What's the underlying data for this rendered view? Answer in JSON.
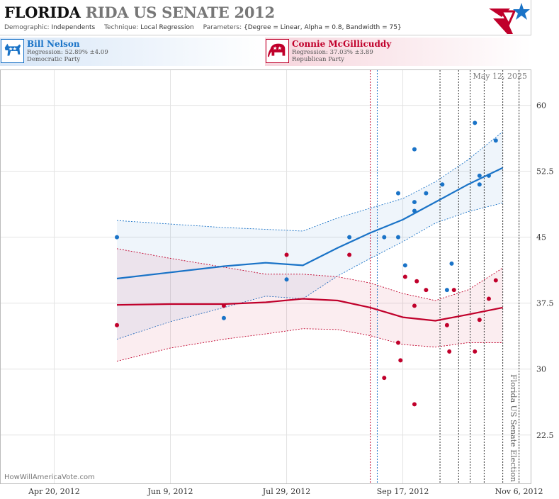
{
  "header": {
    "title_state": "FLORIDA",
    "title_rest": "RIDA US SENATE 2012",
    "demographic_label": "Demographic:",
    "demographic_value": "Independents",
    "technique_label": "Technique:",
    "technique_value": "Local Regression",
    "parameters_label": "Parameters:",
    "parameters_value": "{Degree = Linear, Alpha = 0.8, Bandwidth = 75}"
  },
  "candidates": {
    "dem": {
      "name": "Bill Nelson",
      "regression": "Regression: 52.89% ±4.09",
      "party": "Democratic Party",
      "icon": "donkey-icon"
    },
    "rep": {
      "name": "Connie McGillicuddy",
      "regression": "Regression: 37.03% ±3.89",
      "party": "Republican Party",
      "icon": "elephant-icon"
    }
  },
  "footer": {
    "credit": "HowWillAmericaVote.com",
    "date_stamp": "May 12, 2025",
    "election_label": "Florida US Senate Election"
  },
  "colors": {
    "dem": "#1a73c7",
    "rep": "#c0002b",
    "grid": "#e3e3e3"
  },
  "chart_data": {
    "type": "scatter",
    "x_type": "date",
    "xlim": [
      "2012-03-28",
      "2012-11-11"
    ],
    "ylim": [
      17,
      64
    ],
    "x_ticks": [
      {
        "date": "2012-04-20",
        "label": "Apr 20, 2012"
      },
      {
        "date": "2012-06-09",
        "label": "Jun 9, 2012"
      },
      {
        "date": "2012-07-29",
        "label": "Jul 29, 2012"
      },
      {
        "date": "2012-09-17",
        "label": "Sep 17, 2012"
      },
      {
        "date": "2012-11-06",
        "label": "Nov 6, 2012"
      }
    ],
    "y_ticks": [
      {
        "value": 22.5,
        "label": "22.5"
      },
      {
        "value": 30,
        "label": "30"
      },
      {
        "value": 37.5,
        "label": "37.5"
      },
      {
        "value": 45,
        "label": "45"
      },
      {
        "value": 52.5,
        "label": "52.5"
      },
      {
        "value": 60,
        "label": "60"
      }
    ],
    "grid": true,
    "event_lines": [
      {
        "date": "2012-09-03",
        "style": "rep"
      },
      {
        "date": "2012-09-06",
        "style": "dem"
      },
      {
        "date": "2012-10-03",
        "style": "black"
      },
      {
        "date": "2012-10-11",
        "style": "black"
      },
      {
        "date": "2012-10-16",
        "style": "black"
      },
      {
        "date": "2012-10-22",
        "style": "black"
      },
      {
        "date": "2012-10-30",
        "style": "black"
      },
      {
        "date": "2012-11-06",
        "style": "black"
      }
    ],
    "series": [
      {
        "name": "Bill Nelson",
        "color": "#1a73c7",
        "points": [
          {
            "x": "2012-05-17",
            "y": 45
          },
          {
            "x": "2012-07-02",
            "y": 35.8
          },
          {
            "x": "2012-07-29",
            "y": 40.2
          },
          {
            "x": "2012-08-25",
            "y": 45
          },
          {
            "x": "2012-09-09",
            "y": 45
          },
          {
            "x": "2012-09-15",
            "y": 50
          },
          {
            "x": "2012-09-15",
            "y": 45
          },
          {
            "x": "2012-09-18",
            "y": 41.8
          },
          {
            "x": "2012-09-22",
            "y": 55
          },
          {
            "x": "2012-09-22",
            "y": 49
          },
          {
            "x": "2012-09-22",
            "y": 48
          },
          {
            "x": "2012-09-27",
            "y": 50
          },
          {
            "x": "2012-10-04",
            "y": 51
          },
          {
            "x": "2012-10-06",
            "y": 39
          },
          {
            "x": "2012-10-08",
            "y": 42
          },
          {
            "x": "2012-10-18",
            "y": 58
          },
          {
            "x": "2012-10-20",
            "y": 51
          },
          {
            "x": "2012-10-20",
            "y": 52
          },
          {
            "x": "2012-10-24",
            "y": 52
          },
          {
            "x": "2012-10-27",
            "y": 56
          }
        ],
        "fit": [
          {
            "x": "2012-05-17",
            "y": 40.3
          },
          {
            "x": "2012-06-09",
            "y": 41.0
          },
          {
            "x": "2012-07-02",
            "y": 41.7
          },
          {
            "x": "2012-07-20",
            "y": 42.1
          },
          {
            "x": "2012-08-05",
            "y": 41.8
          },
          {
            "x": "2012-08-20",
            "y": 43.8
          },
          {
            "x": "2012-09-03",
            "y": 45.5
          },
          {
            "x": "2012-09-17",
            "y": 47.0
          },
          {
            "x": "2012-10-01",
            "y": 49.0
          },
          {
            "x": "2012-10-15",
            "y": 51.0
          },
          {
            "x": "2012-10-30",
            "y": 52.9
          }
        ],
        "fit_lower": [
          {
            "x": "2012-05-17",
            "y": 33.4
          },
          {
            "x": "2012-06-09",
            "y": 35.4
          },
          {
            "x": "2012-07-02",
            "y": 37.0
          },
          {
            "x": "2012-07-20",
            "y": 38.3
          },
          {
            "x": "2012-08-05",
            "y": 38.0
          },
          {
            "x": "2012-08-20",
            "y": 40.6
          },
          {
            "x": "2012-09-03",
            "y": 42.6
          },
          {
            "x": "2012-09-17",
            "y": 44.5
          },
          {
            "x": "2012-10-01",
            "y": 46.6
          },
          {
            "x": "2012-10-15",
            "y": 47.9
          },
          {
            "x": "2012-10-30",
            "y": 48.9
          }
        ],
        "fit_upper": [
          {
            "x": "2012-05-17",
            "y": 46.9
          },
          {
            "x": "2012-06-09",
            "y": 46.5
          },
          {
            "x": "2012-07-02",
            "y": 46.1
          },
          {
            "x": "2012-07-20",
            "y": 45.9
          },
          {
            "x": "2012-08-05",
            "y": 45.7
          },
          {
            "x": "2012-08-20",
            "y": 47.2
          },
          {
            "x": "2012-09-03",
            "y": 48.3
          },
          {
            "x": "2012-09-17",
            "y": 49.4
          },
          {
            "x": "2012-10-01",
            "y": 51.3
          },
          {
            "x": "2012-10-15",
            "y": 53.8
          },
          {
            "x": "2012-10-30",
            "y": 57.0
          }
        ]
      },
      {
        "name": "Connie McGillicuddy",
        "color": "#c0002b",
        "points": [
          {
            "x": "2012-05-17",
            "y": 35
          },
          {
            "x": "2012-07-02",
            "y": 37.2
          },
          {
            "x": "2012-07-29",
            "y": 43
          },
          {
            "x": "2012-08-25",
            "y": 43
          },
          {
            "x": "2012-09-09",
            "y": 29
          },
          {
            "x": "2012-09-15",
            "y": 33
          },
          {
            "x": "2012-09-16",
            "y": 31
          },
          {
            "x": "2012-09-18",
            "y": 40.5
          },
          {
            "x": "2012-09-22",
            "y": 37.2
          },
          {
            "x": "2012-09-22",
            "y": 26
          },
          {
            "x": "2012-09-23",
            "y": 40
          },
          {
            "x": "2012-09-27",
            "y": 39
          },
          {
            "x": "2012-10-06",
            "y": 35
          },
          {
            "x": "2012-10-07",
            "y": 32
          },
          {
            "x": "2012-10-09",
            "y": 39
          },
          {
            "x": "2012-10-18",
            "y": 32
          },
          {
            "x": "2012-10-20",
            "y": 35.6
          },
          {
            "x": "2012-10-24",
            "y": 38
          },
          {
            "x": "2012-10-27",
            "y": 40.1
          }
        ],
        "fit": [
          {
            "x": "2012-05-17",
            "y": 37.3
          },
          {
            "x": "2012-06-09",
            "y": 37.4
          },
          {
            "x": "2012-07-02",
            "y": 37.4
          },
          {
            "x": "2012-07-20",
            "y": 37.6
          },
          {
            "x": "2012-08-05",
            "y": 38.0
          },
          {
            "x": "2012-08-20",
            "y": 37.8
          },
          {
            "x": "2012-09-03",
            "y": 37.0
          },
          {
            "x": "2012-09-17",
            "y": 35.9
          },
          {
            "x": "2012-10-01",
            "y": 35.5
          },
          {
            "x": "2012-10-15",
            "y": 36.2
          },
          {
            "x": "2012-10-30",
            "y": 37.0
          }
        ],
        "fit_lower": [
          {
            "x": "2012-05-17",
            "y": 30.9
          },
          {
            "x": "2012-06-09",
            "y": 32.4
          },
          {
            "x": "2012-07-02",
            "y": 33.4
          },
          {
            "x": "2012-07-20",
            "y": 34.0
          },
          {
            "x": "2012-08-05",
            "y": 34.6
          },
          {
            "x": "2012-08-20",
            "y": 34.5
          },
          {
            "x": "2012-09-03",
            "y": 33.8
          },
          {
            "x": "2012-09-17",
            "y": 32.8
          },
          {
            "x": "2012-10-01",
            "y": 32.5
          },
          {
            "x": "2012-10-15",
            "y": 33.0
          },
          {
            "x": "2012-10-30",
            "y": 33.0
          }
        ],
        "fit_upper": [
          {
            "x": "2012-05-17",
            "y": 43.7
          },
          {
            "x": "2012-06-09",
            "y": 42.6
          },
          {
            "x": "2012-07-02",
            "y": 41.6
          },
          {
            "x": "2012-07-20",
            "y": 40.8
          },
          {
            "x": "2012-08-05",
            "y": 40.8
          },
          {
            "x": "2012-08-20",
            "y": 40.5
          },
          {
            "x": "2012-09-03",
            "y": 39.8
          },
          {
            "x": "2012-09-17",
            "y": 38.6
          },
          {
            "x": "2012-10-01",
            "y": 37.8
          },
          {
            "x": "2012-10-15",
            "y": 39.0
          },
          {
            "x": "2012-10-30",
            "y": 41.5
          }
        ]
      }
    ]
  }
}
